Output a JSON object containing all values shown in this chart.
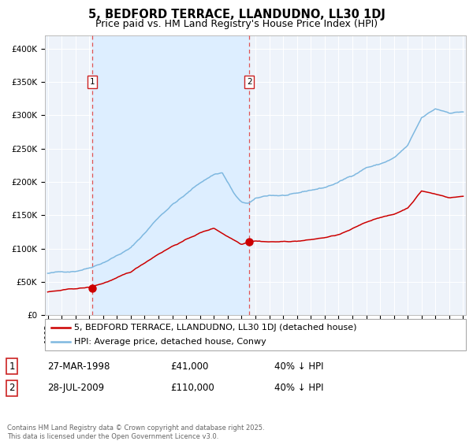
{
  "title": "5, BEDFORD TERRACE, LLANDUDNO, LL30 1DJ",
  "subtitle": "Price paid vs. HM Land Registry's House Price Index (HPI)",
  "ylim": [
    0,
    420000
  ],
  "yticks": [
    0,
    50000,
    100000,
    150000,
    200000,
    250000,
    300000,
    350000,
    400000
  ],
  "ytick_labels": [
    "£0",
    "£50K",
    "£100K",
    "£150K",
    "£200K",
    "£250K",
    "£300K",
    "£350K",
    "£400K"
  ],
  "x_start_year": 1995,
  "x_end_year": 2025,
  "hpi_color": "#7eb8e0",
  "price_color": "#cc0000",
  "vline_color": "#e05555",
  "shade_color": "#ddeeff",
  "plot_bg_color": "#eef3fa",
  "grid_color": "#ffffff",
  "purchase1_year": 1998.22,
  "purchase1_price": 41000,
  "purchase2_year": 2009.56,
  "purchase2_price": 110000,
  "legend_line1": "5, BEDFORD TERRACE, LLANDUDNO, LL30 1DJ (detached house)",
  "legend_line2": "HPI: Average price, detached house, Conwy",
  "table_row1": [
    "1",
    "27-MAR-1998",
    "£41,000",
    "40% ↓ HPI"
  ],
  "table_row2": [
    "2",
    "28-JUL-2009",
    "£110,000",
    "40% ↓ HPI"
  ],
  "footer": "Contains HM Land Registry data © Crown copyright and database right 2025.\nThis data is licensed under the Open Government Licence v3.0.",
  "title_fontsize": 10.5,
  "subtitle_fontsize": 9,
  "tick_fontsize": 7.5,
  "legend_fontsize": 8
}
